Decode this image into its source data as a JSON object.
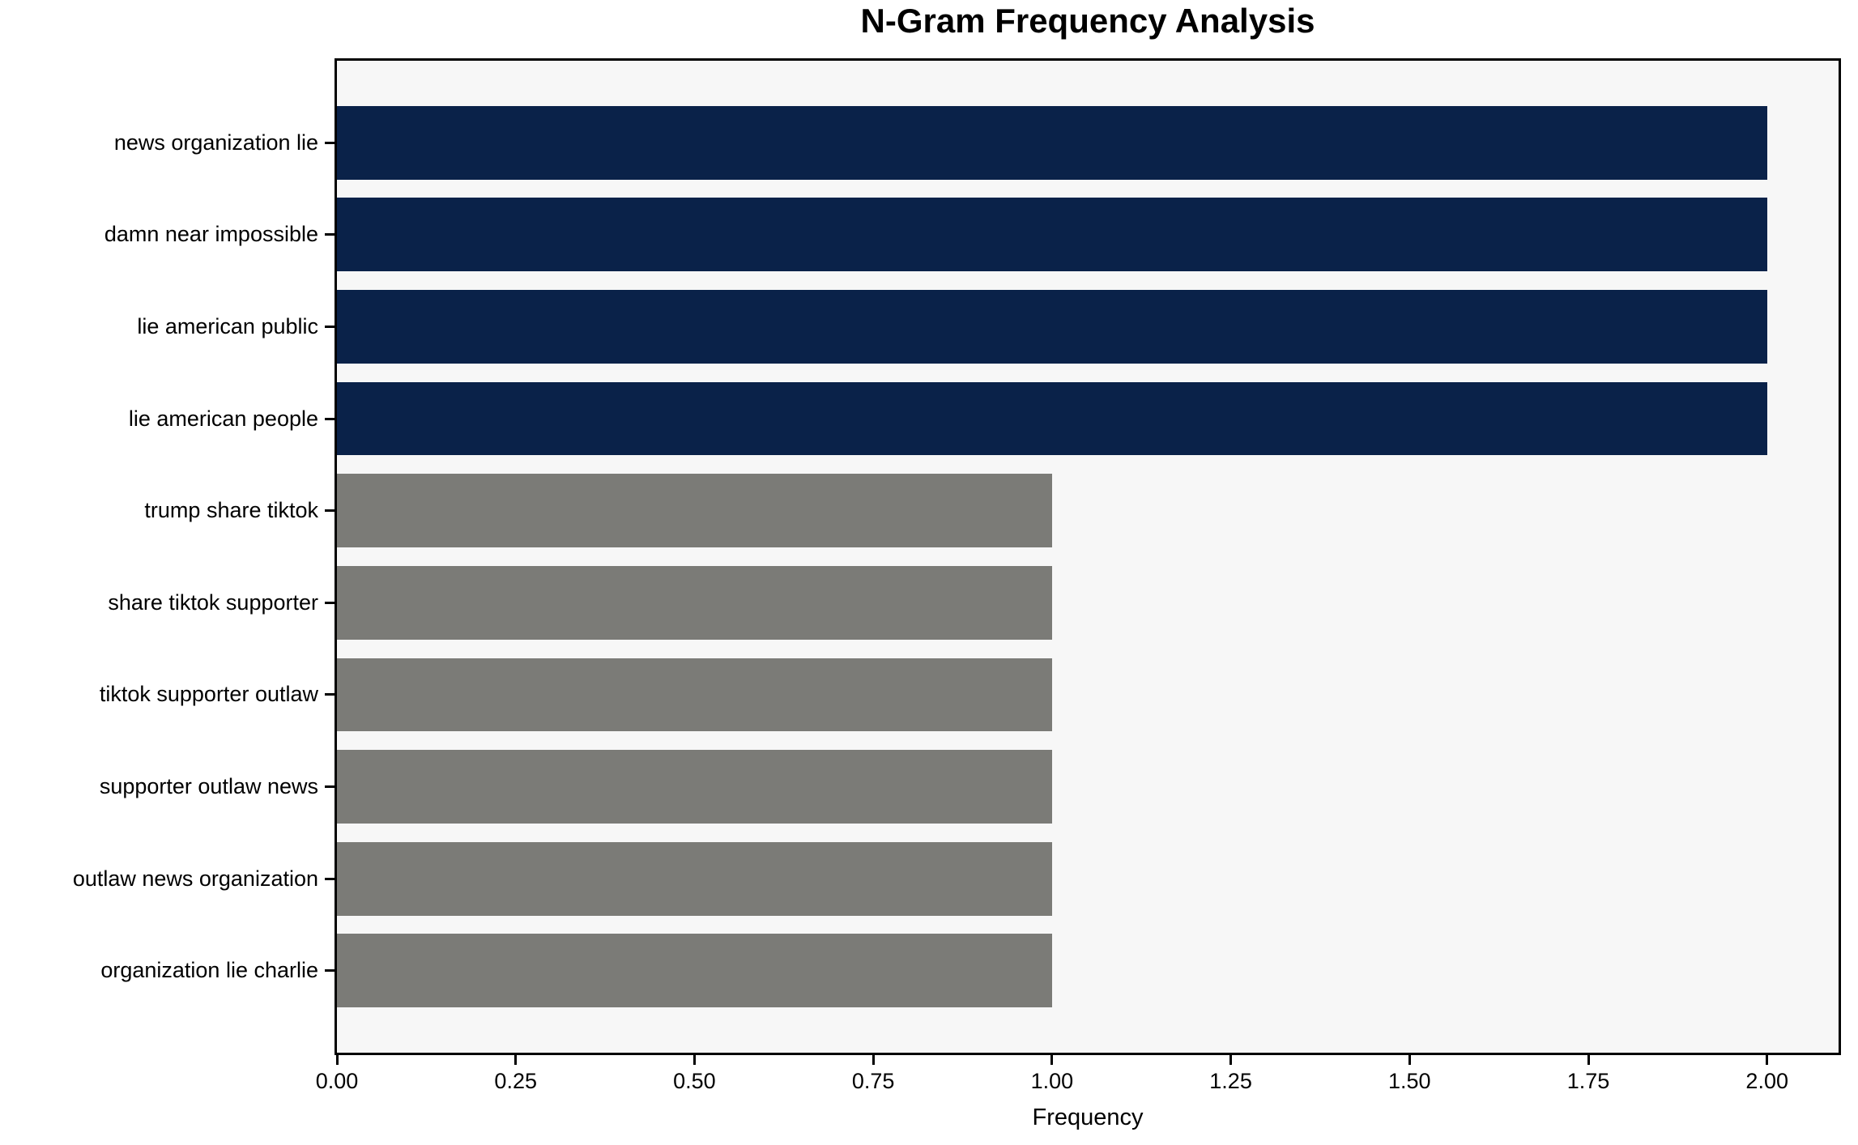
{
  "chart_data": {
    "type": "bar",
    "orientation": "horizontal",
    "title": "N-Gram Frequency Analysis",
    "xlabel": "Frequency",
    "ylabel": "",
    "categories": [
      "news organization lie",
      "damn near impossible",
      "lie american public",
      "lie american people",
      "trump share tiktok",
      "share tiktok supporter",
      "tiktok supporter outlaw",
      "supporter outlaw news",
      "outlaw news organization",
      "organization lie charlie"
    ],
    "values": [
      2,
      2,
      2,
      2,
      1,
      1,
      1,
      1,
      1,
      1
    ],
    "bar_colors": [
      "#0a2249",
      "#0a2249",
      "#0a2249",
      "#0a2249",
      "#7b7b77",
      "#7b7b77",
      "#7b7b77",
      "#7b7b77",
      "#7b7b77",
      "#7b7b77"
    ],
    "xlim": [
      0,
      2.1
    ],
    "x_ticks": [
      0,
      0.25,
      0.5,
      0.75,
      1.0,
      1.25,
      1.5,
      1.75,
      2.0
    ],
    "x_tick_labels": [
      "0.00",
      "0.25",
      "0.50",
      "0.75",
      "1.00",
      "1.25",
      "1.50",
      "1.75",
      "2.00"
    ],
    "grid": false,
    "legend_position": "none",
    "bar_height_fraction": 0.8,
    "colors": {
      "highlight": "#0a2249",
      "default": "#7b7b77",
      "plot_background": "#f7f7f7",
      "figure_background": "#ffffff",
      "spine": "#000000",
      "text": "#000000"
    }
  }
}
